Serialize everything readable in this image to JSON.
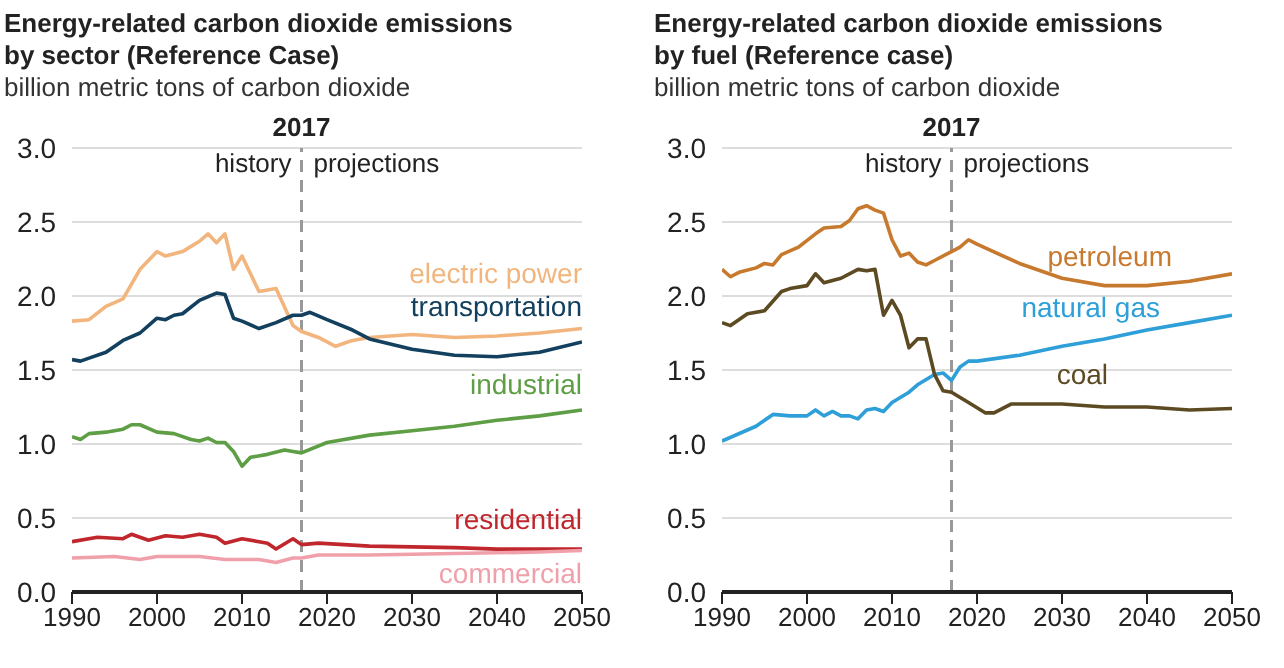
{
  "chart_data": [
    {
      "type": "line",
      "title": "Energy-related carbon dioxide emissions by sector (Reference Case)",
      "subtitle": "billion metric tons of carbon dioxide",
      "xlim": [
        1990,
        2050
      ],
      "xticks": [
        1990,
        2000,
        2010,
        2020,
        2030,
        2040,
        2050
      ],
      "ylim": [
        0,
        3
      ],
      "yticks": [
        {
          "value": 0,
          "label": "0.0"
        },
        {
          "value": 0.5,
          "label": "0.5"
        },
        {
          "value": 1,
          "label": "1.0"
        },
        {
          "value": 1.5,
          "label": "1.5"
        },
        {
          "value": 2,
          "label": "2.0"
        },
        {
          "value": 2.5,
          "label": "2.5"
        },
        {
          "value": 3,
          "label": "3.0"
        }
      ],
      "grid": "y",
      "marker": "none",
      "line_style": "solid",
      "ref_lines": [
        {
          "axis": "x",
          "value": 2017,
          "label": "2017",
          "color": "#999999",
          "line_style": "dashed"
        }
      ],
      "annotations": [
        "history",
        "projections"
      ],
      "series": [
        {
          "name": "electric power",
          "color": "#f2b57e",
          "x": [
            1990,
            1992,
            1994,
            1996,
            1998,
            2000,
            2001,
            2003,
            2005,
            2006,
            2007,
            2008,
            2009,
            2010,
            2012,
            2014,
            2016,
            2017,
            2019,
            2021,
            2023,
            2025,
            2030,
            2035,
            2040,
            2045,
            2050
          ],
          "values": [
            1.83,
            1.84,
            1.93,
            1.98,
            2.18,
            2.3,
            2.27,
            2.3,
            2.37,
            2.42,
            2.36,
            2.42,
            2.18,
            2.27,
            2.03,
            2.05,
            1.8,
            1.76,
            1.72,
            1.66,
            1.7,
            1.72,
            1.74,
            1.72,
            1.73,
            1.75,
            1.78
          ]
        },
        {
          "name": "transportation",
          "color": "#12405e",
          "x": [
            1990,
            1991,
            1992,
            1994,
            1996,
            1998,
            2000,
            2001,
            2002,
            2003,
            2005,
            2007,
            2008,
            2009,
            2010,
            2012,
            2014,
            2016,
            2017,
            2018,
            2020,
            2023,
            2025,
            2030,
            2035,
            2040,
            2045,
            2050
          ],
          "values": [
            1.57,
            1.56,
            1.58,
            1.62,
            1.7,
            1.75,
            1.85,
            1.84,
            1.87,
            1.88,
            1.97,
            2.02,
            2.01,
            1.85,
            1.83,
            1.78,
            1.82,
            1.87,
            1.87,
            1.89,
            1.84,
            1.77,
            1.71,
            1.64,
            1.6,
            1.59,
            1.62,
            1.69
          ]
        },
        {
          "name": "industrial",
          "color": "#5e9e45",
          "x": [
            1990,
            1991,
            1992,
            1994,
            1996,
            1997,
            1998,
            2000,
            2002,
            2004,
            2005,
            2006,
            2007,
            2008,
            2009,
            2010,
            2011,
            2013,
            2015,
            2016,
            2017,
            2020,
            2025,
            2030,
            2035,
            2040,
            2045,
            2050
          ],
          "values": [
            1.05,
            1.03,
            1.07,
            1.08,
            1.1,
            1.13,
            1.13,
            1.08,
            1.07,
            1.03,
            1.02,
            1.04,
            1.01,
            1.01,
            0.95,
            0.85,
            0.91,
            0.93,
            0.96,
            0.95,
            0.94,
            1.01,
            1.06,
            1.09,
            1.12,
            1.16,
            1.19,
            1.23
          ]
        },
        {
          "name": "residential",
          "color": "#c0272d",
          "x": [
            1990,
            1993,
            1996,
            1997,
            1999,
            2001,
            2003,
            2005,
            2007,
            2008,
            2010,
            2012,
            2013,
            2014,
            2016,
            2017,
            2019,
            2025,
            2035,
            2040,
            2050
          ],
          "values": [
            0.34,
            0.37,
            0.36,
            0.39,
            0.35,
            0.38,
            0.37,
            0.39,
            0.37,
            0.33,
            0.36,
            0.34,
            0.33,
            0.29,
            0.36,
            0.32,
            0.33,
            0.31,
            0.3,
            0.29,
            0.29
          ]
        },
        {
          "name": "commercial",
          "color": "#f0a0aa",
          "x": [
            1990,
            1995,
            1998,
            2000,
            2005,
            2008,
            2012,
            2014,
            2016,
            2017,
            2019,
            2025,
            2035,
            2045,
            2050
          ],
          "values": [
            0.23,
            0.24,
            0.22,
            0.24,
            0.24,
            0.22,
            0.22,
            0.2,
            0.23,
            0.23,
            0.25,
            0.25,
            0.26,
            0.27,
            0.28
          ]
        }
      ]
    },
    {
      "type": "line",
      "title": "Energy-related carbon dioxide emissions by fuel (Reference case)",
      "subtitle": "billion metric tons of carbon dioxide",
      "xlim": [
        1990,
        2050
      ],
      "xticks": [
        1990,
        2000,
        2010,
        2020,
        2030,
        2040,
        2050
      ],
      "ylim": [
        0,
        3
      ],
      "yticks": [
        {
          "value": 0,
          "label": "0.0"
        },
        {
          "value": 0.5,
          "label": "0.5"
        },
        {
          "value": 1,
          "label": "1.0"
        },
        {
          "value": 1.5,
          "label": "1.5"
        },
        {
          "value": 2,
          "label": "2.0"
        },
        {
          "value": 2.5,
          "label": "2.5"
        },
        {
          "value": 3,
          "label": "3.0"
        }
      ],
      "grid": "y",
      "marker": "none",
      "line_style": "solid",
      "ref_lines": [
        {
          "axis": "x",
          "value": 2017,
          "label": "2017",
          "color": "#999999",
          "line_style": "dashed"
        }
      ],
      "annotations": [
        "history",
        "projections"
      ],
      "series": [
        {
          "name": "petroleum",
          "color": "#c7792e",
          "x": [
            1990,
            1991,
            1992,
            1994,
            1995,
            1996,
            1997,
            1999,
            2001,
            2002,
            2004,
            2005,
            2006,
            2007,
            2008,
            2009,
            2010,
            2011,
            2012,
            2013,
            2014,
            2015,
            2017,
            2018,
            2019,
            2020,
            2025,
            2030,
            2035,
            2040,
            2045,
            2050
          ],
          "values": [
            2.18,
            2.13,
            2.16,
            2.19,
            2.22,
            2.21,
            2.28,
            2.33,
            2.42,
            2.46,
            2.47,
            2.51,
            2.59,
            2.61,
            2.58,
            2.56,
            2.38,
            2.27,
            2.29,
            2.23,
            2.21,
            2.24,
            2.3,
            2.33,
            2.38,
            2.35,
            2.22,
            2.12,
            2.07,
            2.07,
            2.1,
            2.15
          ]
        },
        {
          "name": "natural gas",
          "color": "#2e9fd8",
          "x": [
            1990,
            1994,
            1996,
            1998,
            2000,
            2001,
            2002,
            2003,
            2004,
            2005,
            2006,
            2007,
            2008,
            2009,
            2010,
            2012,
            2013,
            2015,
            2016,
            2017,
            2018,
            2019,
            2020,
            2025,
            2030,
            2035,
            2040,
            2045,
            2050
          ],
          "values": [
            1.02,
            1.12,
            1.2,
            1.19,
            1.19,
            1.23,
            1.19,
            1.22,
            1.19,
            1.19,
            1.17,
            1.23,
            1.24,
            1.22,
            1.28,
            1.35,
            1.4,
            1.47,
            1.48,
            1.43,
            1.52,
            1.56,
            1.56,
            1.6,
            1.66,
            1.71,
            1.77,
            1.82,
            1.87
          ]
        },
        {
          "name": "coal",
          "color": "#5c4a22",
          "x": [
            1990,
            1991,
            1993,
            1995,
            1997,
            1998,
            2000,
            2001,
            2002,
            2004,
            2006,
            2007,
            2008,
            2009,
            2010,
            2011,
            2012,
            2013,
            2014,
            2015,
            2016,
            2017,
            2019,
            2021,
            2022,
            2024,
            2030,
            2035,
            2040,
            2045,
            2050
          ],
          "values": [
            1.82,
            1.8,
            1.88,
            1.9,
            2.03,
            2.05,
            2.07,
            2.15,
            2.09,
            2.12,
            2.18,
            2.17,
            2.18,
            1.87,
            1.97,
            1.87,
            1.65,
            1.71,
            1.71,
            1.47,
            1.36,
            1.35,
            1.28,
            1.21,
            1.21,
            1.27,
            1.27,
            1.25,
            1.25,
            1.23,
            1.24
          ]
        }
      ]
    }
  ]
}
